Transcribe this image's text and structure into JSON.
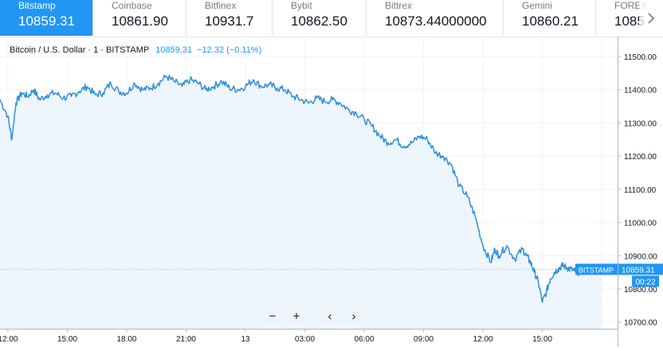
{
  "tabs": [
    {
      "exchange": "Bitstamp",
      "price": "10859.31",
      "active": true,
      "width": 117
    },
    {
      "exchange": "Coinbase",
      "price": "10861.90",
      "active": false,
      "width": 117
    },
    {
      "exchange": "Bitfinex",
      "price": "10931.7",
      "active": false,
      "width": 108
    },
    {
      "exchange": "Bybit",
      "price": "10862.50",
      "active": false,
      "width": 118
    },
    {
      "exchange": "Bittrex",
      "price": "10873.44000000",
      "active": false,
      "width": 172
    },
    {
      "exchange": "Gemini",
      "price": "10860.21",
      "active": false,
      "width": 116
    },
    {
      "exchange": "FOREX",
      "price": "1085",
      "active": false,
      "width": 84
    }
  ],
  "legend": {
    "symbol": "Bitcoin / U.S. Dollar · 1 · BITSTAMP",
    "last": "10859.31",
    "change": "−12.32 (−0.11%)"
  },
  "price_label": {
    "exchange": "BITSTAMP",
    "value": "10859.31",
    "countdown": "00:22"
  },
  "controls": {
    "zoom_out": "−",
    "zoom_in": "+",
    "scroll_left": "‹",
    "scroll_right": "›"
  },
  "colors": {
    "accent": "#2196f3",
    "line": "#2d8fdb",
    "area": "#eef6fd",
    "grid": "#f0f3fa"
  },
  "chart_data": {
    "type": "area",
    "ylim": [
      10680,
      11560
    ],
    "y_ticks": [
      11500,
      11400,
      11300,
      11200,
      11100,
      11000,
      10900,
      10800,
      10700
    ],
    "y_tick_labels": [
      "11500.00",
      "11400.00",
      "11300.00",
      "11200.00",
      "11100.00",
      "11000.00",
      "10900.00",
      "10800.00",
      "10700.00"
    ],
    "x_ticks": [
      0,
      3,
      6,
      9,
      12,
      15,
      18,
      21,
      24,
      27,
      30
    ],
    "x_tick_labels": [
      "12:00",
      "15:00",
      "18:00",
      "21:00",
      "13",
      "03:00",
      "06:00",
      "09:00",
      "12:00",
      "15:00",
      ""
    ],
    "x_range": [
      -0.4,
      30.8
    ],
    "series": [
      {
        "x": [
          -0.4,
          0.0,
          0.2,
          0.4,
          0.7,
          1.0,
          1.3,
          1.6,
          2.0,
          2.4,
          2.8,
          3.2,
          3.6,
          4.0,
          4.4,
          4.8,
          5.2,
          5.6,
          6.0,
          6.4,
          6.8,
          7.2,
          7.6,
          8.0,
          8.4,
          8.8,
          9.2,
          9.6,
          10.0,
          10.4,
          10.8,
          11.2,
          11.6,
          12.0,
          12.4,
          12.8,
          13.2,
          13.6,
          14.0,
          14.4,
          14.8,
          15.2,
          15.6,
          16.0,
          16.4,
          16.8,
          17.2,
          17.6,
          18.0,
          18.4,
          18.8,
          19.2,
          19.6,
          20.0,
          20.4,
          20.8,
          21.2,
          21.6,
          22.0,
          22.4,
          22.8,
          23.2,
          23.6,
          24.0,
          24.4,
          24.6,
          24.8,
          25.2,
          25.6,
          26.0,
          26.2,
          26.4,
          26.6,
          26.8,
          27.0,
          27.2,
          27.4,
          27.6,
          27.8,
          28.0,
          28.2,
          28.4,
          28.6,
          28.8,
          29.0,
          29.2,
          29.4,
          29.6,
          29.8,
          30.0
        ],
        "y": [
          11370,
          11320,
          11250,
          11360,
          11390,
          11380,
          11400,
          11370,
          11385,
          11390,
          11375,
          11380,
          11395,
          11410,
          11385,
          11390,
          11420,
          11395,
          11390,
          11420,
          11400,
          11405,
          11420,
          11440,
          11425,
          11410,
          11430,
          11420,
          11400,
          11410,
          11425,
          11405,
          11400,
          11410,
          11430,
          11410,
          11415,
          11405,
          11400,
          11380,
          11370,
          11360,
          11375,
          11365,
          11370,
          11360,
          11340,
          11330,
          11310,
          11290,
          11260,
          11240,
          11250,
          11230,
          11240,
          11260,
          11250,
          11210,
          11200,
          11175,
          11110,
          11080,
          11020,
          10930,
          10880,
          10920,
          10900,
          10930,
          10890,
          10920,
          10900,
          10880,
          10850,
          10820,
          10760,
          10790,
          10830,
          10850,
          10860,
          10870,
          10865,
          10860,
          10855,
          10850,
          10858,
          10862,
          10860,
          10859,
          10859,
          10859
        ]
      }
    ]
  }
}
